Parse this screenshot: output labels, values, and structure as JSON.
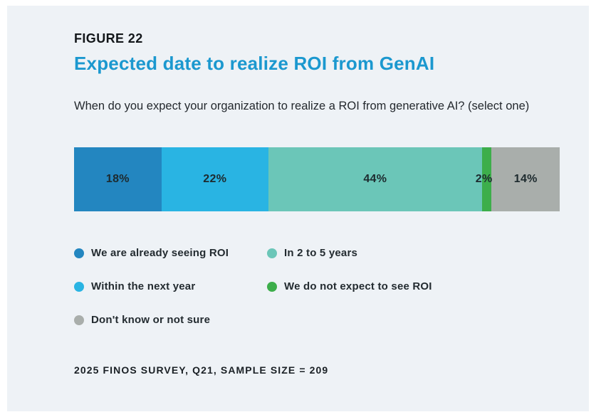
{
  "figure": {
    "label": "FIGURE 22",
    "title": "Expected date to realize ROI from GenAI",
    "question": "When do you expect your organization to realize a ROI from generative AI? (select one)",
    "source": "2025 FINOS SURVEY, Q21, SAMPLE SIZE = 209"
  },
  "colors": {
    "panel_background": "#eef2f6",
    "page_background": "#ffffff",
    "title_accent": "#1b98cf",
    "figure_label_text": "#13171a",
    "body_text": "#24292e",
    "bar_value_text": "#1d2a2e"
  },
  "chart_data": {
    "type": "bar",
    "variant": "horizontal-stacked-100pct",
    "title": "Expected date to realize ROI from GenAI",
    "categories": [
      "We are already seeing ROI",
      "Within the next year",
      "In 2 to 5 years",
      "We do not expect to see ROI",
      "Don't know or not sure"
    ],
    "values": [
      18,
      22,
      44,
      2,
      14
    ],
    "unit": "%",
    "value_labels": [
      "18%",
      "22%",
      "44%",
      "2%",
      "14%"
    ],
    "segment_colors": [
      "#2386c0",
      "#29b4e3",
      "#6bc6b8",
      "#3dae4b",
      "#a9aeab"
    ],
    "xlim": [
      0,
      100
    ],
    "grid": false,
    "legend_position": "below",
    "legend_display_order": [
      0,
      2,
      1,
      3,
      4
    ]
  }
}
